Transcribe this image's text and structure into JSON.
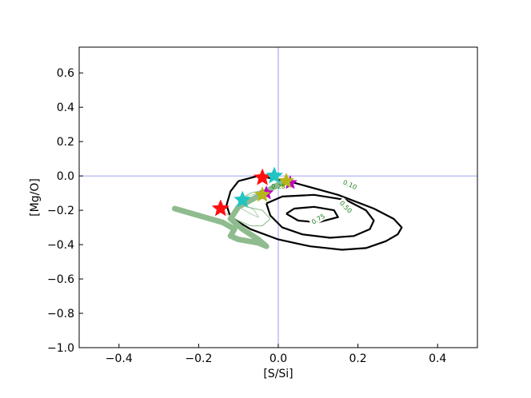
{
  "chart_data": {
    "type": "line",
    "xlabel": "[S/Si]",
    "ylabel": "[Mg/O]",
    "xlim": [
      -0.5,
      0.5
    ],
    "ylim": [
      -1.0,
      0.75
    ],
    "xticks": [
      -0.4,
      -0.2,
      0.0,
      0.2,
      0.4
    ],
    "xtick_labels": [
      "−0.4",
      "−0.2",
      "0.0",
      "0.2",
      "0.4"
    ],
    "yticks": [
      -1.0,
      -0.8,
      -0.6,
      -0.4,
      -0.2,
      0.0,
      0.2,
      0.4,
      0.6
    ],
    "ytick_labels": [
      "−1.0",
      "−0.8",
      "−0.6",
      "−0.4",
      "−0.2",
      "0.0",
      "0.2",
      "0.4",
      "0.6"
    ],
    "grid": false,
    "reference_lines": {
      "x": 0.0,
      "y": 0.0,
      "color": "#7d84e8"
    },
    "contours": [
      {
        "level_label": "0.10",
        "label_at": [
          0.18,
          -0.05
        ],
        "label_angle": 25,
        "x": [
          -0.1,
          -0.12,
          -0.13,
          -0.12,
          -0.07,
          0.0,
          0.08,
          0.16,
          0.22,
          0.27,
          0.3,
          0.31,
          0.29,
          0.24,
          0.15,
          0.04,
          -0.05,
          -0.1
        ],
        "y": [
          -0.03,
          -0.09,
          -0.17,
          -0.24,
          -0.31,
          -0.37,
          -0.41,
          -0.43,
          -0.42,
          -0.38,
          -0.34,
          -0.3,
          -0.25,
          -0.19,
          -0.11,
          -0.04,
          0.0,
          -0.03
        ]
      },
      {
        "level_label": "0.50",
        "label_at": [
          0.17,
          -0.18
        ],
        "label_angle": 45,
        "x": [
          -0.03,
          -0.02,
          0.01,
          0.06,
          0.13,
          0.19,
          0.23,
          0.24,
          0.22,
          0.17,
          0.09,
          0.01,
          -0.03
        ],
        "y": [
          -0.16,
          -0.23,
          -0.3,
          -0.34,
          -0.36,
          -0.35,
          -0.31,
          -0.26,
          -0.2,
          -0.14,
          -0.11,
          -0.12,
          -0.16
        ]
      },
      {
        "level_label": "0.75",
        "label_at": [
          0.1,
          -0.25
        ],
        "label_angle": -30,
        "x": [
          0.02,
          0.05,
          0.1,
          0.15,
          0.14,
          0.09,
          0.04,
          0.02
        ],
        "y": [
          -0.22,
          -0.26,
          -0.27,
          -0.24,
          -0.2,
          -0.18,
          -0.19,
          -0.22
        ]
      }
    ],
    "inner_contour_label": {
      "text": "0.25",
      "at": [
        0.0,
        -0.06
      ]
    },
    "series": [
      {
        "color": "#8fbc8f",
        "x": [
          -0.26,
          -0.2,
          -0.14,
          -0.11,
          -0.12,
          -0.1,
          -0.05,
          -0.03,
          -0.05,
          -0.09,
          -0.12,
          -0.1,
          -0.06,
          -0.03,
          0.0,
          0.02
        ],
        "y": [
          -0.19,
          -0.23,
          -0.27,
          -0.31,
          -0.35,
          -0.37,
          -0.39,
          -0.41,
          -0.37,
          -0.31,
          -0.25,
          -0.18,
          -0.13,
          -0.09,
          -0.05,
          -0.03
        ]
      },
      {
        "color": "#8fbc8f",
        "x": [
          -0.13,
          -0.1,
          -0.07,
          -0.04,
          -0.02,
          -0.04,
          -0.08,
          -0.1,
          -0.07,
          -0.03,
          0.0,
          0.02
        ],
        "y": [
          -0.22,
          -0.26,
          -0.29,
          -0.29,
          -0.25,
          -0.2,
          -0.18,
          -0.14,
          -0.1,
          -0.08,
          -0.05,
          -0.03
        ]
      },
      {
        "color": "#8fbc8f",
        "x": [
          -0.1,
          -0.07,
          -0.05,
          -0.06,
          -0.09,
          -0.08,
          -0.05,
          -0.03,
          -0.01
        ],
        "y": [
          -0.18,
          -0.22,
          -0.24,
          -0.2,
          -0.16,
          -0.12,
          -0.1,
          -0.08,
          -0.05
        ]
      }
    ],
    "markers": [
      {
        "x": -0.145,
        "y": -0.19,
        "color": "#ff1010",
        "size": 11
      },
      {
        "x": -0.04,
        "y": -0.01,
        "color": "#ff1010",
        "size": 11
      },
      {
        "x": -0.09,
        "y": -0.14,
        "color": "#22c4c4",
        "size": 11
      },
      {
        "x": -0.01,
        "y": 0.0,
        "color": "#22c4c4",
        "size": 11
      },
      {
        "x": -0.03,
        "y": -0.1,
        "color": "#bf00bf",
        "size": 9
      },
      {
        "x": 0.03,
        "y": -0.04,
        "color": "#bf00bf",
        "size": 9
      },
      {
        "x": -0.04,
        "y": -0.11,
        "color": "#b6b61a",
        "size": 10
      },
      {
        "x": 0.02,
        "y": -0.03,
        "color": "#b6b61a",
        "size": 10
      }
    ]
  }
}
